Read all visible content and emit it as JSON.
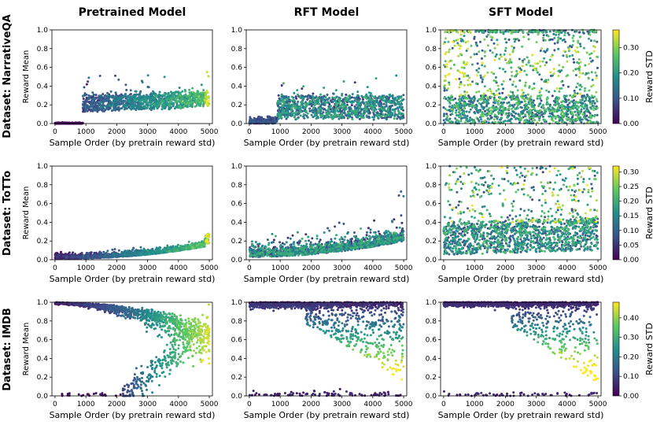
{
  "chart_data": {
    "type": "scatter",
    "column_titles": [
      "Pretrained Model",
      "RFT Model",
      "SFT Model"
    ],
    "row_titles": [
      "Dataset: NarrativeQA",
      "Dataset: ToTTo",
      "Dataset: IMDB"
    ],
    "xlabel": "Sample Order (by pretrain reward std)",
    "ylabel": "Reward Mean",
    "colorbar_label": "Reward STD",
    "xlim": [
      -100,
      5100
    ],
    "ylim": [
      0,
      1
    ],
    "xticks": [
      "0",
      "1000",
      "2000",
      "3000",
      "4000",
      "5000"
    ],
    "yticks": [
      "0.0",
      "0.2",
      "0.4",
      "0.6",
      "0.8",
      "1.0"
    ],
    "colormap": [
      "#440154",
      "#3b528b",
      "#21918c",
      "#5ec962",
      "#fde725"
    ],
    "rows": [
      {
        "dataset": "NarrativeQA",
        "colorbar_max": 0.37,
        "colorbar_ticks": [
          "0.00",
          "0.10",
          "0.20",
          "0.30"
        ],
        "panels": [
          {
            "model": "Pretrained Model",
            "pattern": "narrative_pretrained",
            "summary": "zero mean before ~900; then mean ~0.12-0.25 rising slightly to ~0.3 near 5000; std increases with order",
            "points": 1400
          },
          {
            "model": "RFT Model",
            "pattern": "narrative_rft",
            "summary": "near zero before ~900; mean ~0.05-0.3 after, sparse outliers up to ~0.6",
            "points": 1300
          },
          {
            "model": "SFT Model",
            "pattern": "narrative_sft",
            "summary": "widely spread across 0-1, dense band 0-0.3 and near 1.0",
            "points": 1500
          }
        ]
      },
      {
        "dataset": "ToTTo",
        "colorbar_max": 0.32,
        "colorbar_ticks": [
          "0.00",
          "0.05",
          "0.10",
          "0.15",
          "0.20",
          "0.25",
          "0.30"
        ],
        "panels": [
          {
            "model": "Pretrained Model",
            "pattern": "totto_pretrained",
            "summary": "mean rising from ~0.01 to ~0.15 across order, max ~0.3 near 5000",
            "points": 1300
          },
          {
            "model": "RFT Model",
            "pattern": "totto_rft",
            "summary": "mean ~0.02-0.2 rising to ~0.4, outliers up to ~0.9 near 5000",
            "points": 1300
          },
          {
            "model": "SFT Model",
            "pattern": "totto_sft",
            "summary": "spread 0-1, dense band 0.05-0.4",
            "points": 1500
          }
        ]
      },
      {
        "dataset": "IMDB",
        "colorbar_max": 0.48,
        "colorbar_ticks": [
          "0.00",
          "0.10",
          "0.20",
          "0.30",
          "0.40"
        ],
        "panels": [
          {
            "model": "Pretrained Model",
            "pattern": "imdb_pretrained",
            "summary": "near 1.0 at low order, descending band to ~0.75 at 5000 plus a lower branch rising from 0 to ~0.5 after 2500; std high at large order",
            "points": 1500
          },
          {
            "model": "RFT Model",
            "pattern": "imdb_rft",
            "summary": "mostly near 1.0; spreading down to ~0.2 after 2000; low branch near 0",
            "points": 1400
          },
          {
            "model": "SFT Model",
            "pattern": "imdb_sft",
            "summary": "mostly near 1.0; spreading down after 2500; low branch near 0",
            "points": 1400
          }
        ]
      }
    ]
  }
}
